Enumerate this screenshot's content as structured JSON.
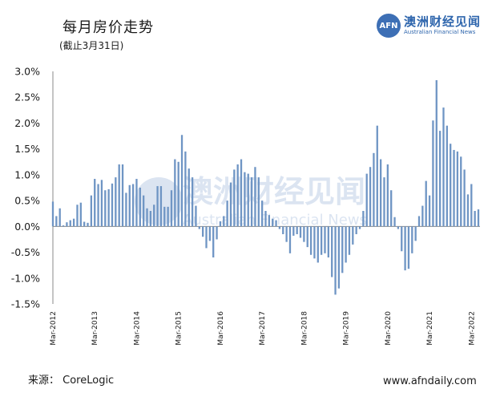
{
  "header": {
    "title": "每月房价走势",
    "subtitle": "(截止3月31日)"
  },
  "logo": {
    "mark": "AFN",
    "name": "澳洲财经见闻",
    "tagline": "Australian Financial News"
  },
  "footer": {
    "source": "来源： CoreLogic",
    "url": "www.afndaily.com"
  },
  "watermark": {
    "name": "澳洲财经见闻",
    "tagline": "Australian Financial News"
  },
  "colors": {
    "bar": "#6f95c4",
    "axis": "#888888",
    "logo": "#2f66ad"
  },
  "chart_data": {
    "type": "bar",
    "title": "每月房价走势",
    "subtitle": "(截止3月31日)",
    "ylim": [
      -1.5,
      3.0
    ],
    "ytick_labels": [
      "3.0%",
      "2.5%",
      "2.0%",
      "1.5%",
      "1.0%",
      "0.5%",
      "0.0%",
      "-0.5%",
      "-1.0%",
      "-1.5%"
    ],
    "xtick_labels": [
      "Mar-2012",
      "Mar-2013",
      "Mar-2014",
      "Mar-2015",
      "Mar-2016",
      "Mar-2017",
      "Mar-2018",
      "Mar-2019",
      "Mar-2020",
      "Mar-2021",
      "Mar-2022"
    ],
    "unit": "%",
    "x_start": "Mar-2012",
    "x_end": "Mar-2022",
    "values": [
      0.48,
      0.2,
      0.35,
      0.02,
      0.08,
      0.12,
      0.15,
      0.42,
      0.46,
      0.09,
      0.07,
      0.6,
      0.92,
      0.82,
      0.9,
      0.7,
      0.72,
      0.83,
      0.95,
      1.2,
      1.2,
      0.65,
      0.8,
      0.82,
      0.92,
      0.75,
      0.6,
      0.35,
      0.3,
      0.42,
      0.78,
      0.78,
      0.38,
      0.38,
      0.7,
      1.3,
      1.25,
      1.77,
      1.45,
      1.12,
      0.95,
      0.4,
      -0.05,
      -0.2,
      -0.42,
      -0.28,
      -0.6,
      -0.25,
      0.1,
      0.2,
      0.5,
      0.85,
      1.1,
      1.2,
      1.3,
      1.05,
      1.02,
      0.95,
      1.15,
      0.95,
      0.5,
      0.3,
      0.22,
      0.15,
      0.12,
      -0.05,
      -0.15,
      -0.3,
      -0.52,
      -0.18,
      -0.15,
      -0.22,
      -0.3,
      -0.4,
      -0.55,
      -0.62,
      -0.7,
      -0.55,
      -0.52,
      -0.6,
      -0.98,
      -1.32,
      -1.2,
      -0.9,
      -0.7,
      -0.55,
      -0.35,
      -0.15,
      -0.05,
      0.3,
      1.02,
      1.15,
      1.42,
      1.95,
      1.3,
      0.95,
      1.2,
      0.7,
      0.18,
      -0.05,
      -0.48,
      -0.85,
      -0.82,
      -0.52,
      -0.28,
      0.2,
      0.4,
      0.88,
      0.6,
      2.05,
      2.83,
      1.85,
      2.3,
      1.95,
      1.6,
      1.48,
      1.45,
      1.35,
      1.1,
      0.62,
      0.82,
      0.3,
      0.33
    ]
  }
}
